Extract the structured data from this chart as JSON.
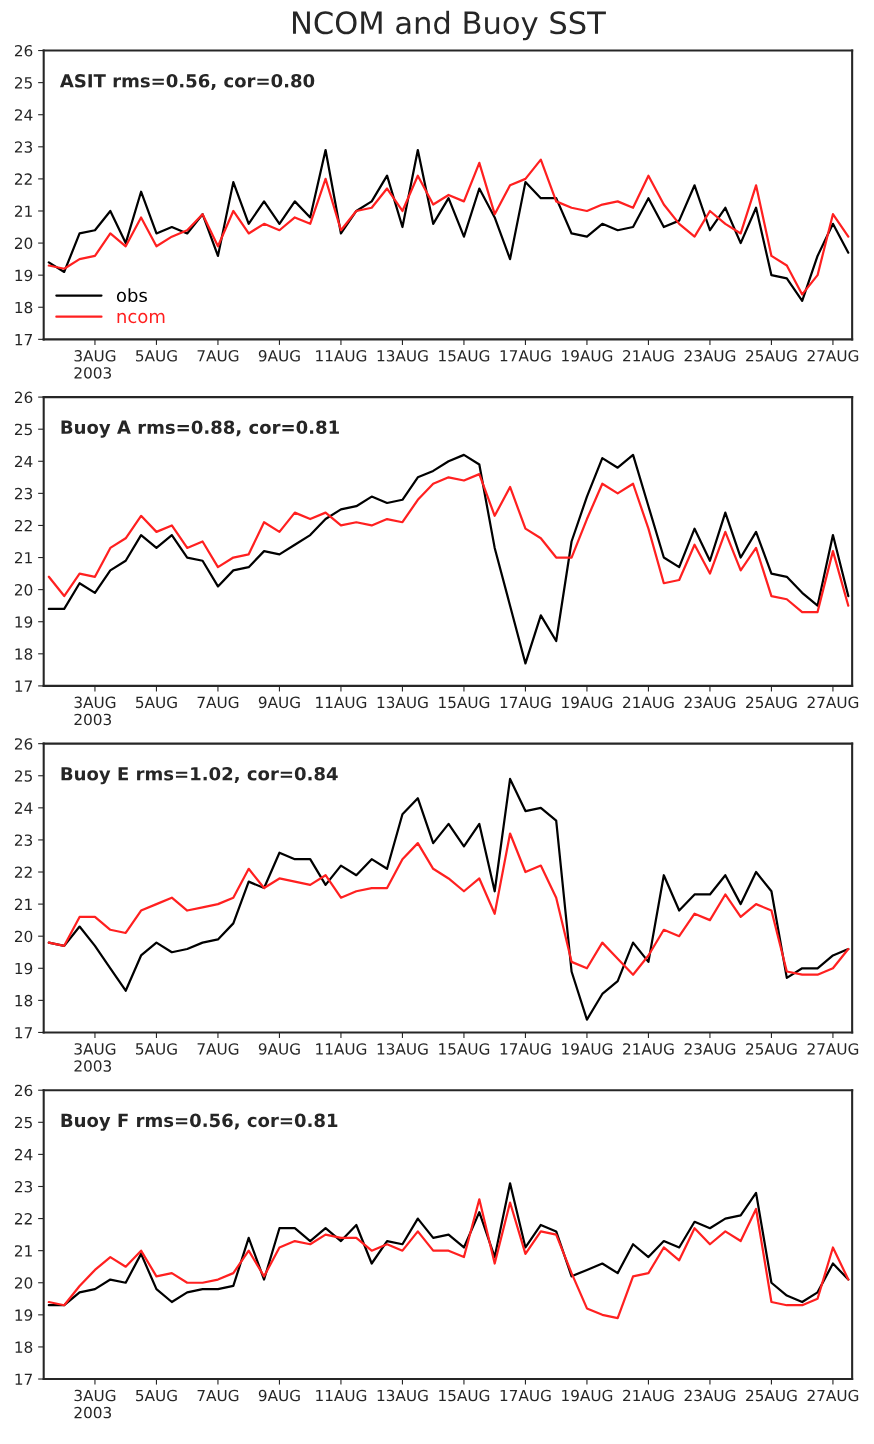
{
  "chart_data": [
    {
      "type": "line",
      "title": "NCOM and Buoy SST",
      "annotations": [
        "ASIT rms=0.56, cor=0.80"
      ],
      "legend": "bottom left",
      "grid": false,
      "xlim": [
        "2003-08-01T08:00",
        "2003-08-27T15:00"
      ],
      "ylim": [
        17,
        26
      ],
      "yticks": [
        17,
        18,
        19,
        20,
        21,
        22,
        23,
        24,
        25,
        26
      ],
      "xticks": [
        {
          "value": "2003-08-03",
          "label": "3AUG\n2003"
        },
        {
          "value": "2003-08-05",
          "label": "5AUG"
        },
        {
          "value": "2003-08-07",
          "label": "7AUG"
        },
        {
          "value": "2003-08-09",
          "label": "9AUG"
        },
        {
          "value": "2003-08-11",
          "label": "11AUG"
        },
        {
          "value": "2003-08-13",
          "label": "13AUG"
        },
        {
          "value": "2003-08-15",
          "label": "15AUG"
        },
        {
          "value": "2003-08-17",
          "label": "17AUG"
        },
        {
          "value": "2003-08-19",
          "label": "19AUG"
        },
        {
          "value": "2003-08-21",
          "label": "21AUG"
        },
        {
          "value": "2003-08-23",
          "label": "23AUG"
        },
        {
          "value": "2003-08-25",
          "label": "25AUG"
        },
        {
          "value": "2003-08-27",
          "label": "27AUG"
        }
      ],
      "x": [
        "2003-08-01T12:00",
        "2003-08-02T00:00",
        "2003-08-02T12:00",
        "2003-08-03T00:00",
        "2003-08-03T12:00",
        "2003-08-04T00:00",
        "2003-08-04T12:00",
        "2003-08-05T00:00",
        "2003-08-05T12:00",
        "2003-08-06T00:00",
        "2003-08-06T12:00",
        "2003-08-07T00:00",
        "2003-08-07T12:00",
        "2003-08-08T00:00",
        "2003-08-08T12:00",
        "2003-08-09T00:00",
        "2003-08-09T12:00",
        "2003-08-10T00:00",
        "2003-08-10T12:00",
        "2003-08-11T00:00",
        "2003-08-11T12:00",
        "2003-08-12T00:00",
        "2003-08-12T12:00",
        "2003-08-13T00:00",
        "2003-08-13T12:00",
        "2003-08-14T00:00",
        "2003-08-14T12:00",
        "2003-08-15T00:00",
        "2003-08-15T12:00",
        "2003-08-16T00:00",
        "2003-08-16T12:00",
        "2003-08-17T00:00",
        "2003-08-17T12:00",
        "2003-08-18T00:00",
        "2003-08-18T12:00",
        "2003-08-19T00:00",
        "2003-08-19T12:00",
        "2003-08-20T00:00",
        "2003-08-20T12:00",
        "2003-08-21T00:00",
        "2003-08-21T12:00",
        "2003-08-22T00:00",
        "2003-08-22T12:00",
        "2003-08-23T00:00",
        "2003-08-23T12:00",
        "2003-08-24T00:00",
        "2003-08-24T12:00",
        "2003-08-25T00:00",
        "2003-08-25T12:00",
        "2003-08-26T00:00",
        "2003-08-26T12:00",
        "2003-08-27T00:00",
        "2003-08-27T12:00"
      ],
      "series": [
        {
          "name": "obs",
          "color": "#000000",
          "values": [
            19.4,
            19.1,
            20.3,
            20.4,
            21.0,
            20.0,
            21.6,
            20.3,
            20.5,
            20.3,
            20.9,
            19.6,
            21.9,
            20.6,
            21.3,
            20.6,
            21.3,
            20.8,
            22.9,
            20.3,
            21.0,
            21.3,
            22.1,
            20.5,
            22.9,
            20.6,
            21.4,
            20.2,
            21.7,
            20.8,
            19.5,
            21.9,
            21.4,
            21.4,
            20.3,
            20.2,
            20.6,
            20.4,
            20.5,
            21.4,
            20.5,
            20.7,
            21.8,
            20.4,
            21.1,
            20.0,
            21.1,
            19.0,
            18.9,
            18.2,
            19.6,
            20.6,
            19.7
          ]
        },
        {
          "name": "ncom",
          "color": "#ff2020",
          "values": [
            19.3,
            19.2,
            19.5,
            19.6,
            20.3,
            19.9,
            20.8,
            19.9,
            20.2,
            20.4,
            20.9,
            19.9,
            21.0,
            20.3,
            20.6,
            20.4,
            20.8,
            20.6,
            22.0,
            20.4,
            21.0,
            21.1,
            21.7,
            21.0,
            22.1,
            21.2,
            21.5,
            21.3,
            22.5,
            20.9,
            21.8,
            22.0,
            22.6,
            21.3,
            21.1,
            21.0,
            21.2,
            21.3,
            21.1,
            22.1,
            21.2,
            20.6,
            20.2,
            21.0,
            20.6,
            20.3,
            21.8,
            19.6,
            19.3,
            18.4,
            19.0,
            20.9,
            20.2
          ]
        }
      ]
    },
    {
      "type": "line",
      "annotations": [
        "Buoy A rms=0.88, cor=0.81"
      ],
      "grid": false,
      "xlim": [
        "2003-08-01T08:00",
        "2003-08-27T15:00"
      ],
      "ylim": [
        17,
        26
      ],
      "yticks": [
        17,
        18,
        19,
        20,
        21,
        22,
        23,
        24,
        25,
        26
      ],
      "xticks": [
        {
          "value": "2003-08-03",
          "label": "3AUG\n2003"
        },
        {
          "value": "2003-08-05",
          "label": "5AUG"
        },
        {
          "value": "2003-08-07",
          "label": "7AUG"
        },
        {
          "value": "2003-08-09",
          "label": "9AUG"
        },
        {
          "value": "2003-08-11",
          "label": "11AUG"
        },
        {
          "value": "2003-08-13",
          "label": "13AUG"
        },
        {
          "value": "2003-08-15",
          "label": "15AUG"
        },
        {
          "value": "2003-08-17",
          "label": "17AUG"
        },
        {
          "value": "2003-08-19",
          "label": "19AUG"
        },
        {
          "value": "2003-08-21",
          "label": "21AUG"
        },
        {
          "value": "2003-08-23",
          "label": "23AUG"
        },
        {
          "value": "2003-08-25",
          "label": "25AUG"
        },
        {
          "value": "2003-08-27",
          "label": "27AUG"
        }
      ],
      "x": [
        "2003-08-01T12:00",
        "2003-08-02T00:00",
        "2003-08-02T12:00",
        "2003-08-03T00:00",
        "2003-08-03T12:00",
        "2003-08-04T00:00",
        "2003-08-04T12:00",
        "2003-08-05T00:00",
        "2003-08-05T12:00",
        "2003-08-06T00:00",
        "2003-08-06T12:00",
        "2003-08-07T00:00",
        "2003-08-07T12:00",
        "2003-08-08T00:00",
        "2003-08-08T12:00",
        "2003-08-09T00:00",
        "2003-08-09T12:00",
        "2003-08-10T00:00",
        "2003-08-10T12:00",
        "2003-08-11T00:00",
        "2003-08-11T12:00",
        "2003-08-12T00:00",
        "2003-08-12T12:00",
        "2003-08-13T00:00",
        "2003-08-13T12:00",
        "2003-08-14T00:00",
        "2003-08-14T12:00",
        "2003-08-15T00:00",
        "2003-08-15T12:00",
        "2003-08-16T00:00",
        "2003-08-16T12:00",
        "2003-08-17T00:00",
        "2003-08-17T12:00",
        "2003-08-18T00:00",
        "2003-08-18T12:00",
        "2003-08-19T00:00",
        "2003-08-19T12:00",
        "2003-08-20T00:00",
        "2003-08-20T12:00",
        "2003-08-21T00:00",
        "2003-08-21T12:00",
        "2003-08-22T00:00",
        "2003-08-22T12:00",
        "2003-08-23T00:00",
        "2003-08-23T12:00",
        "2003-08-24T00:00",
        "2003-08-24T12:00",
        "2003-08-25T00:00",
        "2003-08-25T12:00",
        "2003-08-26T00:00",
        "2003-08-26T12:00",
        "2003-08-27T00:00",
        "2003-08-27T12:00"
      ],
      "series": [
        {
          "color": "#000000",
          "values": [
            19.4,
            19.4,
            20.2,
            19.9,
            20.6,
            20.9,
            21.7,
            21.3,
            21.7,
            21.0,
            20.9,
            20.1,
            20.6,
            20.7,
            21.2,
            21.1,
            21.4,
            21.7,
            22.2,
            22.5,
            22.6,
            22.9,
            22.7,
            22.8,
            23.5,
            23.7,
            24.0,
            24.2,
            23.9,
            21.3,
            19.5,
            17.7,
            19.2,
            18.4,
            21.5,
            22.9,
            24.1,
            23.8,
            24.2,
            22.6,
            21.0,
            20.7,
            21.9,
            20.9,
            22.4,
            21.0,
            21.8,
            20.5,
            20.4,
            19.9,
            19.5,
            21.7,
            19.8
          ]
        },
        {
          "color": "#ff2020",
          "values": [
            20.4,
            19.8,
            20.5,
            20.4,
            21.3,
            21.6,
            22.3,
            21.8,
            22.0,
            21.3,
            21.5,
            20.7,
            21.0,
            21.1,
            22.1,
            21.8,
            22.4,
            22.2,
            22.4,
            22.0,
            22.1,
            22.0,
            22.2,
            22.1,
            22.8,
            23.3,
            23.5,
            23.4,
            23.6,
            22.3,
            23.2,
            21.9,
            21.6,
            21.0,
            21.0,
            22.2,
            23.3,
            23.0,
            23.3,
            21.9,
            20.2,
            20.3,
            21.4,
            20.5,
            21.8,
            20.6,
            21.3,
            19.8,
            19.7,
            19.3,
            19.3,
            21.2,
            19.5
          ]
        }
      ]
    },
    {
      "type": "line",
      "annotations": [
        "Buoy E rms=1.02, cor=0.84"
      ],
      "grid": false,
      "xlim": [
        "2003-08-01T08:00",
        "2003-08-27T15:00"
      ],
      "ylim": [
        17,
        26
      ],
      "yticks": [
        17,
        18,
        19,
        20,
        21,
        22,
        23,
        24,
        25,
        26
      ],
      "xticks": [
        {
          "value": "2003-08-03",
          "label": "3AUG\n2003"
        },
        {
          "value": "2003-08-05",
          "label": "5AUG"
        },
        {
          "value": "2003-08-07",
          "label": "7AUG"
        },
        {
          "value": "2003-08-09",
          "label": "9AUG"
        },
        {
          "value": "2003-08-11",
          "label": "11AUG"
        },
        {
          "value": "2003-08-13",
          "label": "13AUG"
        },
        {
          "value": "2003-08-15",
          "label": "15AUG"
        },
        {
          "value": "2003-08-17",
          "label": "17AUG"
        },
        {
          "value": "2003-08-19",
          "label": "19AUG"
        },
        {
          "value": "2003-08-21",
          "label": "21AUG"
        },
        {
          "value": "2003-08-23",
          "label": "23AUG"
        },
        {
          "value": "2003-08-25",
          "label": "25AUG"
        },
        {
          "value": "2003-08-27",
          "label": "27AUG"
        }
      ],
      "x": [
        "2003-08-01T12:00",
        "2003-08-02T00:00",
        "2003-08-02T12:00",
        "2003-08-03T00:00",
        "2003-08-03T12:00",
        "2003-08-04T00:00",
        "2003-08-04T12:00",
        "2003-08-05T00:00",
        "2003-08-05T12:00",
        "2003-08-06T00:00",
        "2003-08-06T12:00",
        "2003-08-07T00:00",
        "2003-08-07T12:00",
        "2003-08-08T00:00",
        "2003-08-08T12:00",
        "2003-08-09T00:00",
        "2003-08-09T12:00",
        "2003-08-10T00:00",
        "2003-08-10T12:00",
        "2003-08-11T00:00",
        "2003-08-11T12:00",
        "2003-08-12T00:00",
        "2003-08-12T12:00",
        "2003-08-13T00:00",
        "2003-08-13T12:00",
        "2003-08-14T00:00",
        "2003-08-14T12:00",
        "2003-08-15T00:00",
        "2003-08-15T12:00",
        "2003-08-16T00:00",
        "2003-08-16T12:00",
        "2003-08-17T00:00",
        "2003-08-17T12:00",
        "2003-08-18T00:00",
        "2003-08-18T12:00",
        "2003-08-19T00:00",
        "2003-08-19T12:00",
        "2003-08-20T00:00",
        "2003-08-20T12:00",
        "2003-08-21T00:00",
        "2003-08-21T12:00",
        "2003-08-22T00:00",
        "2003-08-22T12:00",
        "2003-08-23T00:00",
        "2003-08-23T12:00",
        "2003-08-24T00:00",
        "2003-08-24T12:00",
        "2003-08-25T00:00",
        "2003-08-25T12:00",
        "2003-08-26T00:00",
        "2003-08-26T12:00",
        "2003-08-27T00:00",
        "2003-08-27T12:00"
      ],
      "series": [
        {
          "color": "#000000",
          "values": [
            19.8,
            19.7,
            20.3,
            19.7,
            19.0,
            18.3,
            19.4,
            19.8,
            19.5,
            19.6,
            19.8,
            19.9,
            20.4,
            21.7,
            21.5,
            22.6,
            22.4,
            22.4,
            21.6,
            22.2,
            21.9,
            22.4,
            22.1,
            23.8,
            24.3,
            22.9,
            23.5,
            22.8,
            23.5,
            21.4,
            24.9,
            23.9,
            24.0,
            23.6,
            18.9,
            17.4,
            18.2,
            18.6,
            19.8,
            19.2,
            21.9,
            20.8,
            21.3,
            21.3,
            21.9,
            21.0,
            22.0,
            21.4,
            18.7,
            19.0,
            19.0,
            19.4,
            19.6
          ]
        },
        {
          "color": "#ff2020",
          "values": [
            19.8,
            19.7,
            20.6,
            20.6,
            20.2,
            20.1,
            20.8,
            21.0,
            21.2,
            20.8,
            20.9,
            21.0,
            21.2,
            22.1,
            21.5,
            21.8,
            21.7,
            21.6,
            21.9,
            21.2,
            21.4,
            21.5,
            21.5,
            22.4,
            22.9,
            22.1,
            21.8,
            21.4,
            21.8,
            20.7,
            23.2,
            22.0,
            22.2,
            21.2,
            19.2,
            19.0,
            19.8,
            19.3,
            18.8,
            19.4,
            20.2,
            20.0,
            20.7,
            20.5,
            21.3,
            20.6,
            21.0,
            20.8,
            18.9,
            18.8,
            18.8,
            19.0,
            19.6
          ]
        }
      ]
    },
    {
      "type": "line",
      "annotations": [
        "Buoy F rms=0.56, cor=0.81"
      ],
      "grid": false,
      "xlim": [
        "2003-08-01T08:00",
        "2003-08-27T15:00"
      ],
      "ylim": [
        17,
        26
      ],
      "yticks": [
        17,
        18,
        19,
        20,
        21,
        22,
        23,
        24,
        25,
        26
      ],
      "xticks": [
        {
          "value": "2003-08-03",
          "label": "3AUG\n2003"
        },
        {
          "value": "2003-08-05",
          "label": "5AUG"
        },
        {
          "value": "2003-08-07",
          "label": "7AUG"
        },
        {
          "value": "2003-08-09",
          "label": "9AUG"
        },
        {
          "value": "2003-08-11",
          "label": "11AUG"
        },
        {
          "value": "2003-08-13",
          "label": "13AUG"
        },
        {
          "value": "2003-08-15",
          "label": "15AUG"
        },
        {
          "value": "2003-08-17",
          "label": "17AUG"
        },
        {
          "value": "2003-08-19",
          "label": "19AUG"
        },
        {
          "value": "2003-08-21",
          "label": "21AUG"
        },
        {
          "value": "2003-08-23",
          "label": "23AUG"
        },
        {
          "value": "2003-08-25",
          "label": "25AUG"
        },
        {
          "value": "2003-08-27",
          "label": "27AUG"
        }
      ],
      "x": [
        "2003-08-01T12:00",
        "2003-08-02T00:00",
        "2003-08-02T12:00",
        "2003-08-03T00:00",
        "2003-08-03T12:00",
        "2003-08-04T00:00",
        "2003-08-04T12:00",
        "2003-08-05T00:00",
        "2003-08-05T12:00",
        "2003-08-06T00:00",
        "2003-08-06T12:00",
        "2003-08-07T00:00",
        "2003-08-07T12:00",
        "2003-08-08T00:00",
        "2003-08-08T12:00",
        "2003-08-09T00:00",
        "2003-08-09T12:00",
        "2003-08-10T00:00",
        "2003-08-10T12:00",
        "2003-08-11T00:00",
        "2003-08-11T12:00",
        "2003-08-12T00:00",
        "2003-08-12T12:00",
        "2003-08-13T00:00",
        "2003-08-13T12:00",
        "2003-08-14T00:00",
        "2003-08-14T12:00",
        "2003-08-15T00:00",
        "2003-08-15T12:00",
        "2003-08-16T00:00",
        "2003-08-16T12:00",
        "2003-08-17T00:00",
        "2003-08-17T12:00",
        "2003-08-18T00:00",
        "2003-08-18T12:00",
        "2003-08-19T00:00",
        "2003-08-19T12:00",
        "2003-08-20T00:00",
        "2003-08-20T12:00",
        "2003-08-21T00:00",
        "2003-08-21T12:00",
        "2003-08-22T00:00",
        "2003-08-22T12:00",
        "2003-08-23T00:00",
        "2003-08-23T12:00",
        "2003-08-24T00:00",
        "2003-08-24T12:00",
        "2003-08-25T00:00",
        "2003-08-25T12:00",
        "2003-08-26T00:00",
        "2003-08-26T12:00",
        "2003-08-27T00:00",
        "2003-08-27T12:00"
      ],
      "series": [
        {
          "color": "#000000",
          "values": [
            19.3,
            19.3,
            19.7,
            19.8,
            20.1,
            20.0,
            20.9,
            19.8,
            19.4,
            19.7,
            19.8,
            19.8,
            19.9,
            21.4,
            20.1,
            21.7,
            21.7,
            21.3,
            21.7,
            21.3,
            21.8,
            20.6,
            21.3,
            21.2,
            22.0,
            21.4,
            21.5,
            21.1,
            22.2,
            20.8,
            23.1,
            21.1,
            21.8,
            21.6,
            20.2,
            20.4,
            20.6,
            20.3,
            21.2,
            20.8,
            21.3,
            21.1,
            21.9,
            21.7,
            22.0,
            22.1,
            22.8,
            20.0,
            19.6,
            19.4,
            19.7,
            20.6,
            20.1
          ]
        },
        {
          "color": "#ff2020",
          "values": [
            19.4,
            19.3,
            19.9,
            20.4,
            20.8,
            20.5,
            21.0,
            20.2,
            20.3,
            20.0,
            20.0,
            20.1,
            20.3,
            21.0,
            20.2,
            21.1,
            21.3,
            21.2,
            21.5,
            21.4,
            21.4,
            21.0,
            21.2,
            21.0,
            21.6,
            21.0,
            21.0,
            20.8,
            22.6,
            20.6,
            22.5,
            20.9,
            21.6,
            21.5,
            20.3,
            19.2,
            19.0,
            18.9,
            20.2,
            20.3,
            21.1,
            20.7,
            21.7,
            21.2,
            21.6,
            21.3,
            22.3,
            19.4,
            19.3,
            19.3,
            19.5,
            21.1,
            20.1
          ]
        }
      ]
    }
  ]
}
